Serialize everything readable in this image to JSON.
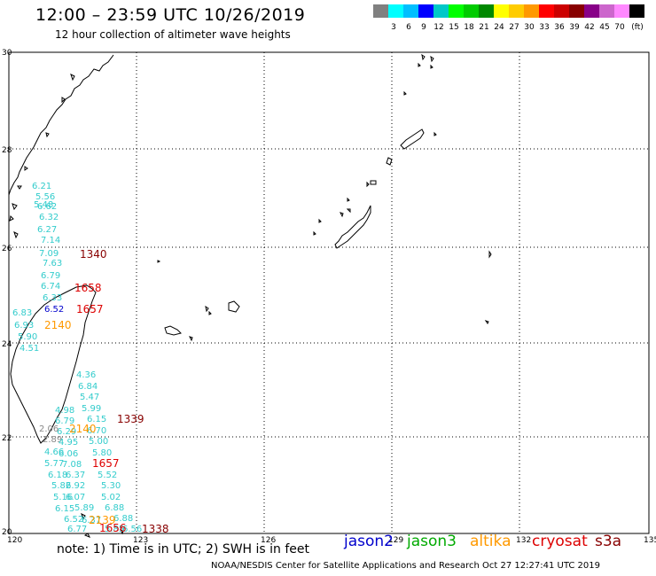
{
  "header": {
    "title": "12:00 – 23:59 UTC 10/26/2019",
    "subtitle": "12 hour collection of altimeter wave heights"
  },
  "legend": {
    "unit": "(ft)",
    "colors": [
      "#808080",
      "#00ffff",
      "#00bfff",
      "#0000ff",
      "#00c8c8",
      "#00ff00",
      "#00cc00",
      "#008800",
      "#ffff00",
      "#ffcc00",
      "#ff9900",
      "#ff0000",
      "#cc0000",
      "#880000",
      "#880088",
      "#cc66cc",
      "#ff88ff",
      "#000000"
    ],
    "labels": [
      "3",
      "6",
      "9",
      "12",
      "15",
      "18",
      "21",
      "24",
      "27",
      "30",
      "33",
      "36",
      "39",
      "42",
      "45",
      "70"
    ]
  },
  "axes": {
    "x_ticks": [
      "120",
      "123",
      "126",
      "129",
      "132",
      "135"
    ],
    "y_ticks": [
      "30",
      "28",
      "26",
      "24",
      "22",
      "20"
    ]
  },
  "observations": [
    {
      "t": "6.21",
      "c": "#33cccc"
    },
    {
      "t": "5.56",
      "c": "#33cccc"
    },
    {
      "t": "5.48",
      "c": "#33cccc"
    },
    {
      "t": "6.62",
      "c": "#33cccc"
    },
    {
      "t": "6.32",
      "c": "#33cccc"
    },
    {
      "t": "6.27",
      "c": "#33cccc"
    },
    {
      "t": "7.14",
      "c": "#33cccc"
    },
    {
      "t": "7.09",
      "c": "#33cccc"
    },
    {
      "t": "7.63",
      "c": "#33cccc"
    },
    {
      "t": "6.79",
      "c": "#33cccc"
    },
    {
      "t": "6.74",
      "c": "#33cccc"
    },
    {
      "t": "6.33",
      "c": "#33cccc"
    },
    {
      "t": "6.52",
      "c": "#0000cc"
    },
    {
      "t": "6.83",
      "c": "#33cccc"
    },
    {
      "t": "6.93",
      "c": "#33cccc"
    },
    {
      "t": "5.90",
      "c": "#33cccc"
    },
    {
      "t": "4.51",
      "c": "#33cccc"
    },
    {
      "t": "4.36",
      "c": "#33cccc"
    },
    {
      "t": "6.84",
      "c": "#33cccc"
    },
    {
      "t": "5.47",
      "c": "#33cccc"
    },
    {
      "t": "5.99",
      "c": "#33cccc"
    },
    {
      "t": "4.98",
      "c": "#33cccc"
    },
    {
      "t": "6.79",
      "c": "#33cccc"
    },
    {
      "t": "6.15",
      "c": "#33cccc"
    },
    {
      "t": "6.29",
      "c": "#33cccc"
    },
    {
      "t": "6.70",
      "c": "#33cccc"
    },
    {
      "t": "2.06",
      "c": "#888888"
    },
    {
      "t": "2.89",
      "c": "#888888"
    },
    {
      "t": "4.95",
      "c": "#33cccc"
    },
    {
      "t": "5.00",
      "c": "#33cccc"
    },
    {
      "t": "4.66",
      "c": "#33cccc"
    },
    {
      "t": "6.06",
      "c": "#33cccc"
    },
    {
      "t": "5.80",
      "c": "#33cccc"
    },
    {
      "t": "5.77",
      "c": "#33cccc"
    },
    {
      "t": "7.08",
      "c": "#33cccc"
    },
    {
      "t": "6.18",
      "c": "#33cccc"
    },
    {
      "t": "6.37",
      "c": "#33cccc"
    },
    {
      "t": "5.52",
      "c": "#33cccc"
    },
    {
      "t": "5.82",
      "c": "#33cccc"
    },
    {
      "t": "6.92",
      "c": "#33cccc"
    },
    {
      "t": "5.30",
      "c": "#33cccc"
    },
    {
      "t": "5.16",
      "c": "#33cccc"
    },
    {
      "t": "6.07",
      "c": "#33cccc"
    },
    {
      "t": "5.02",
      "c": "#33cccc"
    },
    {
      "t": "6.15",
      "c": "#33cccc"
    },
    {
      "t": "5.89",
      "c": "#33cccc"
    },
    {
      "t": "6.88",
      "c": "#33cccc"
    },
    {
      "t": "6.52",
      "c": "#33cccc"
    },
    {
      "t": "6.37",
      "c": "#33cccc"
    },
    {
      "t": "6.88",
      "c": "#33cccc"
    },
    {
      "t": "6.77",
      "c": "#33cccc"
    },
    {
      "t": "5.85",
      "c": "#33cccc"
    },
    {
      "t": "6.56",
      "c": "#33cccc"
    }
  ],
  "passes": [
    {
      "t": "1340",
      "c": "#880000"
    },
    {
      "t": "1658",
      "c": "#dd0000"
    },
    {
      "t": "1657",
      "c": "#dd0000"
    },
    {
      "t": "2140",
      "c": "#ff9900"
    },
    {
      "t": "1339",
      "c": "#880000"
    },
    {
      "t": "2140",
      "c": "#ff9900"
    },
    {
      "t": "1657",
      "c": "#dd0000"
    },
    {
      "t": "2139",
      "c": "#ff9900"
    },
    {
      "t": "1656",
      "c": "#dd0000"
    },
    {
      "t": "1338",
      "c": "#880000"
    }
  ],
  "note": "note:  1)  Time is in UTC;  2)  SWH is in feet",
  "satellites": [
    {
      "name": "jason2",
      "color": "#0000cc"
    },
    {
      "name": "jason3",
      "color": "#00aa00"
    },
    {
      "name": "altika",
      "color": "#ff9900"
    },
    {
      "name": "cryosat",
      "color": "#dd0000"
    },
    {
      "name": "s3a",
      "color": "#880000"
    }
  ],
  "credit": "NOAA/NESDIS Center for Satellite Applications and Research    Oct 27 12:27:41 UTC 2019"
}
